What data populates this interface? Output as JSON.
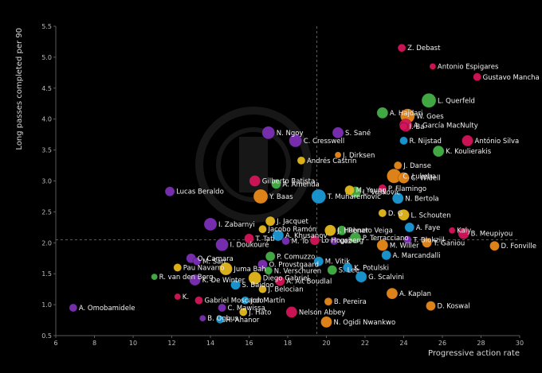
{
  "colors": {
    "background": "#000000",
    "frame": "#5a5a5a",
    "refline": "#777777",
    "palette": {
      "purple": "#7b2fb5",
      "magenta": "#d4145a",
      "orange": "#e8891a",
      "gold": "#e6b81e",
      "green": "#43b047",
      "blue": "#1a9ad6"
    }
  },
  "chart_data": {
    "type": "scatter",
    "title": "",
    "xlabel": "Progressive action rate",
    "ylabel": "Long passes completed per 90",
    "xlim": [
      6,
      30
    ],
    "ylim": [
      0.5,
      5.5
    ],
    "xticks": [
      6,
      8,
      10,
      12,
      14,
      16,
      18,
      20,
      22,
      24,
      26,
      28,
      30
    ],
    "yticks": [
      0.5,
      1.0,
      1.5,
      2.0,
      2.5,
      3.0,
      3.5,
      4.0,
      4.5,
      5.0,
      5.5
    ],
    "reference_lines": {
      "x": 19.5,
      "y": 2.05
    },
    "grid": false,
    "legend": "none",
    "points": [
      {
        "name": "Z. Debast",
        "x": 23.9,
        "y": 5.15,
        "r": 5,
        "color": "magenta"
      },
      {
        "name": "Antonio Espigares",
        "x": 25.5,
        "y": 4.85,
        "r": 4,
        "color": "magenta"
      },
      {
        "name": "Gustavo Mancha",
        "x": 27.8,
        "y": 4.68,
        "r": 5,
        "color": "magenta"
      },
      {
        "name": "L. Querfeld",
        "x": 25.3,
        "y": 4.3,
        "r": 9,
        "color": "green"
      },
      {
        "name": "A. Hajdari",
        "x": 22.9,
        "y": 4.1,
        "r": 7,
        "color": "green"
      },
      {
        "name": "W. Goes",
        "x": 24.2,
        "y": 4.05,
        "r": 9,
        "color": "orange"
      },
      {
        "name": "A. García MacNulty",
        "x": 24.1,
        "y": 3.9,
        "r": 8,
        "color": "magenta"
      },
      {
        "name": "I. Ba",
        "x": 24.0,
        "y": 3.88,
        "r": 5,
        "color": "magenta"
      },
      {
        "name": "S. Sané",
        "x": 20.6,
        "y": 3.78,
        "r": 7,
        "color": "purple"
      },
      {
        "name": "N. Ngoy",
        "x": 17.0,
        "y": 3.78,
        "r": 8,
        "color": "purple"
      },
      {
        "name": "C. Cresswell",
        "x": 18.4,
        "y": 3.65,
        "r": 8,
        "color": "purple"
      },
      {
        "name": "R. Nijstad",
        "x": 24.0,
        "y": 3.65,
        "r": 5,
        "color": "blue"
      },
      {
        "name": "António Silva",
        "x": 27.3,
        "y": 3.65,
        "r": 7,
        "color": "magenta"
      },
      {
        "name": "K. Koulierakis",
        "x": 25.8,
        "y": 3.48,
        "r": 7,
        "color": "green"
      },
      {
        "name": "J. Dirksen",
        "x": 20.6,
        "y": 3.42,
        "r": 4,
        "color": "orange"
      },
      {
        "name": "Andrés Castrín",
        "x": 18.7,
        "y": 3.33,
        "r": 5,
        "color": "gold"
      },
      {
        "name": "J. Danse",
        "x": 23.7,
        "y": 3.25,
        "r": 5,
        "color": "orange"
      },
      {
        "name": "C. Lukeba",
        "x": 23.5,
        "y": 3.08,
        "r": 9,
        "color": "orange"
      },
      {
        "name": "C. Widell",
        "x": 24.0,
        "y": 3.05,
        "r": 7,
        "color": "orange"
      },
      {
        "name": "Gilberto Batista",
        "x": 16.3,
        "y": 3.0,
        "r": 7,
        "color": "magenta"
      },
      {
        "name": "A. Amenda",
        "x": 17.4,
        "y": 2.95,
        "r": 6,
        "color": "green"
      },
      {
        "name": "P. Flamingo",
        "x": 22.9,
        "y": 2.88,
        "r": 5,
        "color": "magenta"
      },
      {
        "name": "L. Vušković",
        "x": 21.5,
        "y": 2.82,
        "r": 7,
        "color": "green"
      },
      {
        "name": "M. Young",
        "x": 21.2,
        "y": 2.85,
        "r": 6,
        "color": "gold"
      },
      {
        "name": "Lucas Beraldo",
        "x": 11.9,
        "y": 2.83,
        "r": 6,
        "color": "purple"
      },
      {
        "name": "T. Muharemović",
        "x": 19.6,
        "y": 2.75,
        "r": 9,
        "color": "blue"
      },
      {
        "name": "Y. Baas",
        "x": 16.6,
        "y": 2.75,
        "r": 9,
        "color": "orange"
      },
      {
        "name": "N. Bertola",
        "x": 23.7,
        "y": 2.72,
        "r": 7,
        "color": "blue"
      },
      {
        "name": "D. G",
        "x": 22.9,
        "y": 2.48,
        "r": 5,
        "color": "gold"
      },
      {
        "name": "L. Schouten",
        "x": 24.0,
        "y": 2.45,
        "r": 7,
        "color": "gold"
      },
      {
        "name": "J. Jacquet",
        "x": 17.1,
        "y": 2.35,
        "r": 6,
        "color": "gold"
      },
      {
        "name": "I. Zabarnyi",
        "x": 14.0,
        "y": 2.3,
        "r": 8,
        "color": "purple"
      },
      {
        "name": "Jacobo Ramón",
        "x": 16.7,
        "y": 2.22,
        "r": 5,
        "color": "gold"
      },
      {
        "name": "J. Hubner",
        "x": 20.2,
        "y": 2.2,
        "r": 7,
        "color": "gold"
      },
      {
        "name": "Renato Veiga",
        "x": 20.8,
        "y": 2.2,
        "r": 6,
        "color": "green"
      },
      {
        "name": "A. Faye",
        "x": 24.3,
        "y": 2.25,
        "r": 6,
        "color": "blue"
      },
      {
        "name": "Kaly",
        "x": 26.5,
        "y": 2.2,
        "r": 4,
        "color": "magenta"
      },
      {
        "name": "B. Meupiyou",
        "x": 27.1,
        "y": 2.15,
        "r": 7,
        "color": "magenta"
      },
      {
        "name": "A. Khusanov",
        "x": 17.5,
        "y": 2.12,
        "r": 7,
        "color": "blue"
      },
      {
        "name": "P. Terracciano",
        "x": 21.5,
        "y": 2.08,
        "r": 7,
        "color": "green"
      },
      {
        "name": "T. Tati",
        "x": 16.0,
        "y": 2.07,
        "r": 6,
        "color": "magenta"
      },
      {
        "name": "Lo Hogsberg",
        "x": 19.4,
        "y": 2.04,
        "r": 6,
        "color": "magenta"
      },
      {
        "name": "uez",
        "x": 20.4,
        "y": 2.03,
        "r": 5,
        "color": "purple"
      },
      {
        "name": "M. To",
        "x": 17.9,
        "y": 2.03,
        "r": 5,
        "color": "purple"
      },
      {
        "name": "T. Blokzijl",
        "x": 24.2,
        "y": 2.05,
        "r": 5,
        "color": "purple"
      },
      {
        "name": "T. Ganiou",
        "x": 25.2,
        "y": 2.0,
        "r": 6,
        "color": "orange"
      },
      {
        "name": "D. Fonville",
        "x": 28.7,
        "y": 1.95,
        "r": 6,
        "color": "orange"
      },
      {
        "name": "M. Willer",
        "x": 22.9,
        "y": 1.96,
        "r": 7,
        "color": "orange"
      },
      {
        "name": "I. Doukouré",
        "x": 14.6,
        "y": 1.97,
        "r": 8,
        "color": "purple"
      },
      {
        "name": "P. Comuzzo",
        "x": 17.1,
        "y": 1.78,
        "r": 6,
        "color": "green"
      },
      {
        "name": "A. Marcandalli",
        "x": 23.1,
        "y": 1.8,
        "r": 6,
        "color": "blue"
      },
      {
        "name": "M. Vitik",
        "x": 19.6,
        "y": 1.7,
        "r": 6,
        "color": "blue"
      },
      {
        "name": "O. Camara",
        "x": 13.0,
        "y": 1.75,
        "r": 6,
        "color": "purple"
      },
      {
        "name": "M. Sarr",
        "x": 13.3,
        "y": 1.7,
        "r": 5,
        "color": "purple"
      },
      {
        "name": "O. Provstgaard",
        "x": 16.7,
        "y": 1.65,
        "r": 6,
        "color": "purple"
      },
      {
        "name": "Pau Navarro",
        "x": 12.3,
        "y": 1.6,
        "r": 5,
        "color": "gold"
      },
      {
        "name": "Juma Bah",
        "x": 14.8,
        "y": 1.58,
        "r": 8,
        "color": "gold"
      },
      {
        "name": "S. Lee",
        "x": 20.3,
        "y": 1.56,
        "r": 6,
        "color": "green"
      },
      {
        "name": "K. Potulski",
        "x": 21.1,
        "y": 1.6,
        "r": 6,
        "color": "blue"
      },
      {
        "name": "N. Verschuren",
        "x": 17.0,
        "y": 1.55,
        "r": 5,
        "color": "green"
      },
      {
        "name": "R. van den Berg",
        "x": 11.1,
        "y": 1.45,
        "r": 4,
        "color": "green"
      },
      {
        "name": "G. Scalvini",
        "x": 21.8,
        "y": 1.45,
        "r": 7,
        "color": "blue"
      },
      {
        "name": "K. De Winter",
        "x": 13.2,
        "y": 1.4,
        "r": 7,
        "color": "purple"
      },
      {
        "name": "Diego Gabriel",
        "x": 16.3,
        "y": 1.43,
        "r": 8,
        "color": "gold"
      },
      {
        "name": "A. Ait Boudlal",
        "x": 17.6,
        "y": 1.38,
        "r": 6,
        "color": "magenta"
      },
      {
        "name": "S. Baidoo",
        "x": 15.3,
        "y": 1.32,
        "r": 6,
        "color": "blue"
      },
      {
        "name": "J. Belocian",
        "x": 16.7,
        "y": 1.25,
        "r": 5,
        "color": "gold"
      },
      {
        "name": "A. Kaplan",
        "x": 23.4,
        "y": 1.18,
        "r": 7,
        "color": "orange"
      },
      {
        "name": "K.",
        "x": 12.3,
        "y": 1.13,
        "r": 4,
        "color": "magenta"
      },
      {
        "name": "Gabriel Moscardo",
        "x": 13.4,
        "y": 1.07,
        "r": 5,
        "color": "magenta"
      },
      {
        "name": "Jon Martín",
        "x": 15.8,
        "y": 1.07,
        "r": 5,
        "color": "blue"
      },
      {
        "name": "B. Pereira",
        "x": 20.1,
        "y": 1.05,
        "r": 5,
        "color": "orange"
      },
      {
        "name": "D. Koswal",
        "x": 25.4,
        "y": 0.98,
        "r": 6,
        "color": "orange"
      },
      {
        "name": "A. Omobamidele",
        "x": 6.9,
        "y": 0.95,
        "r": 5,
        "color": "purple"
      },
      {
        "name": "C. Mawissa",
        "x": 14.6,
        "y": 0.95,
        "r": 5,
        "color": "purple"
      },
      {
        "name": "Nelson Abbey",
        "x": 18.2,
        "y": 0.88,
        "r": 7,
        "color": "magenta"
      },
      {
        "name": "J. Hato",
        "x": 15.7,
        "y": 0.88,
        "r": 5,
        "color": "gold"
      },
      {
        "name": "B. Ogbus",
        "x": 13.6,
        "y": 0.78,
        "r": 4,
        "color": "purple"
      },
      {
        "name": "H. Ahanor",
        "x": 14.5,
        "y": 0.76,
        "r": 5,
        "color": "blue"
      },
      {
        "name": "N. Ogidi Nwankwo",
        "x": 20.0,
        "y": 0.72,
        "r": 7,
        "color": "orange"
      }
    ]
  }
}
